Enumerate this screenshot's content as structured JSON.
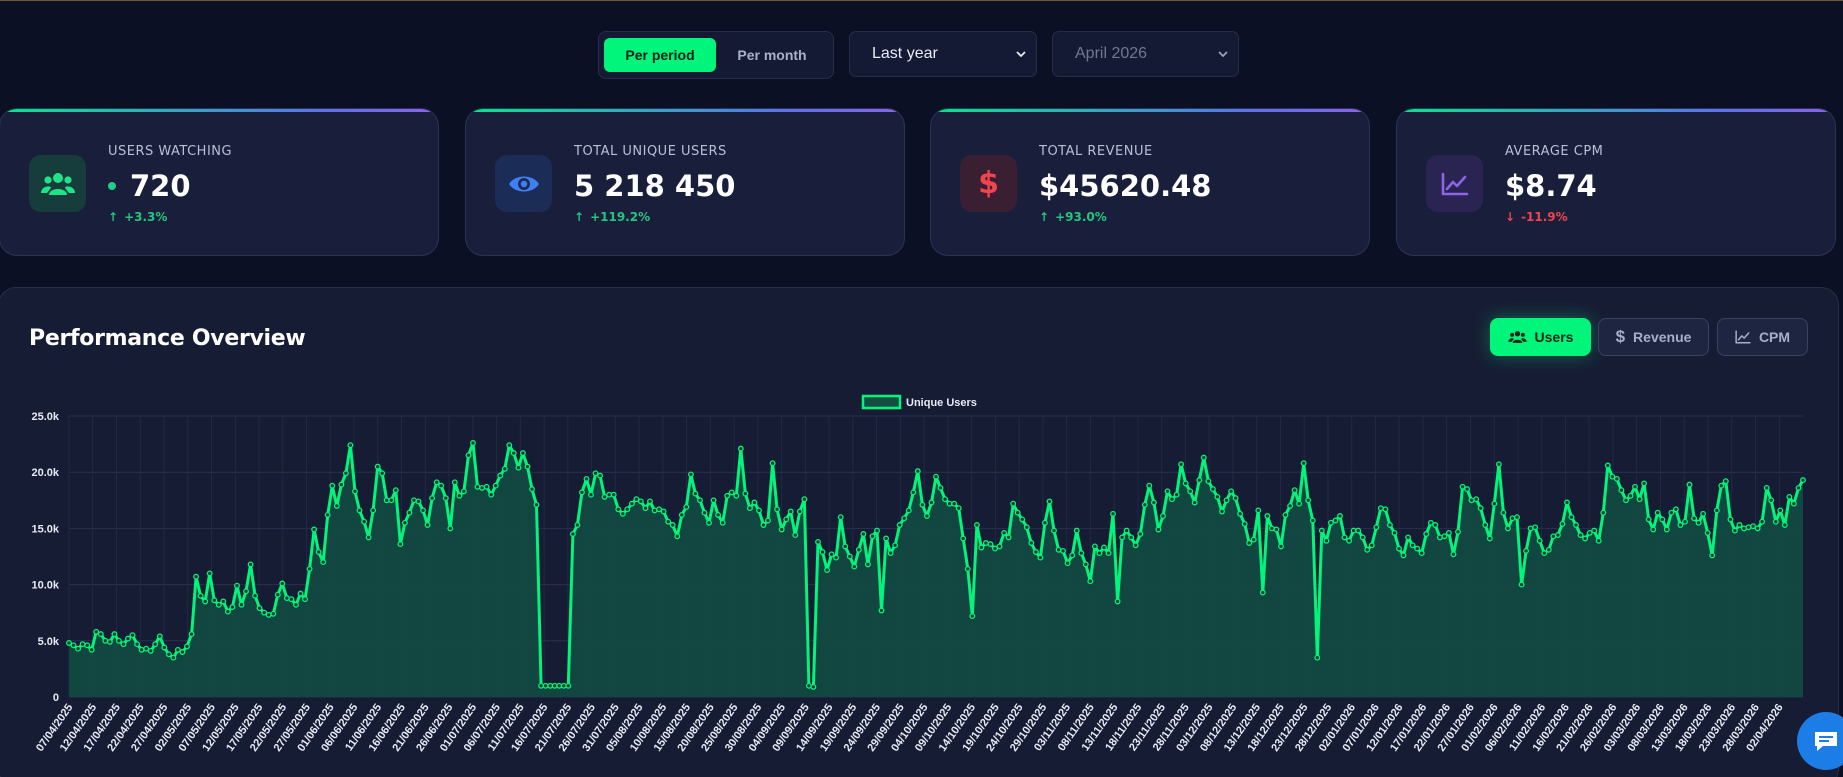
{
  "controls": {
    "period_toggle": {
      "active": "Per period",
      "inactive": "Per month"
    },
    "range_select": {
      "value": "Last year"
    },
    "month_select": {
      "value": "April 2026"
    }
  },
  "kpis": [
    {
      "label": "USERS WATCHING",
      "value": "720",
      "delta": "+3.3%",
      "trend": "up",
      "icon": "users-icon",
      "accent": "#1ee48a"
    },
    {
      "label": "TOTAL UNIQUE USERS",
      "value": "5 218 450",
      "delta": "+119.2%",
      "trend": "up",
      "icon": "eye-icon",
      "accent": "#3f7ff2"
    },
    {
      "label": "TOTAL REVENUE",
      "value": "$45620.48",
      "delta": "+93.0%",
      "trend": "up",
      "icon": "dollar-icon",
      "accent": "#f0454f"
    },
    {
      "label": "AVERAGE CPM",
      "value": "$8.74",
      "delta": "-11.9%",
      "trend": "down",
      "icon": "line-chart-icon",
      "accent": "#8d63e8"
    }
  ],
  "panel": {
    "title": "Performance Overview",
    "metric_buttons": [
      {
        "label": "Users",
        "icon": "users-icon",
        "active": true
      },
      {
        "label": "Revenue",
        "icon": "dollar-icon",
        "active": false
      },
      {
        "label": "CPM",
        "icon": "line-chart-icon",
        "active": false
      }
    ]
  },
  "chart_data": {
    "type": "area",
    "legend": "Unique Users",
    "line_color": "#00f57a",
    "y_ticks": [
      "0",
      "5.0k",
      "10.0k",
      "15.0k",
      "20.0k",
      "25.0k"
    ],
    "ylim": [
      0,
      25000
    ],
    "x_tick_labels": [
      "07/04/2025",
      "12/04/2025",
      "17/04/2025",
      "22/04/2025",
      "27/04/2025",
      "02/05/2025",
      "07/05/2025",
      "12/05/2025",
      "17/05/2025",
      "22/05/2025",
      "27/05/2025",
      "01/06/2025",
      "06/06/2025",
      "11/06/2025",
      "16/06/2025",
      "21/06/2025",
      "26/06/2025",
      "01/07/2025",
      "06/07/2025",
      "11/07/2025",
      "16/07/2025",
      "21/07/2025",
      "26/07/2025",
      "31/07/2025",
      "05/08/2025",
      "10/08/2025",
      "15/08/2025",
      "20/08/2025",
      "25/08/2025",
      "30/08/2025",
      "04/09/2025",
      "09/09/2025",
      "14/09/2025",
      "19/09/2025",
      "24/09/2025",
      "29/09/2025",
      "04/10/2025",
      "09/10/2025",
      "14/10/2025",
      "19/10/2025",
      "24/10/2025",
      "29/10/2025",
      "03/11/2025",
      "08/11/2025",
      "13/11/2025",
      "18/11/2025",
      "23/11/2025",
      "28/11/2025",
      "03/12/2025",
      "08/12/2025",
      "13/12/2025",
      "18/12/2025",
      "23/12/2025",
      "28/12/2025",
      "02/01/2026",
      "07/01/2026",
      "12/01/2026",
      "17/01/2026",
      "22/01/2026",
      "27/01/2026",
      "01/02/2026",
      "06/02/2026",
      "11/02/2026",
      "16/02/2026",
      "21/02/2026",
      "26/02/2026",
      "03/03/2026",
      "08/03/2026",
      "13/03/2026",
      "18/03/2026",
      "23/03/2026",
      "28/03/2026",
      "02/04/2026"
    ],
    "values": [
      4800,
      4600,
      4300,
      4700,
      4600,
      4200,
      5800,
      5600,
      5000,
      4900,
      5600,
      5000,
      4700,
      5200,
      5500,
      4700,
      4200,
      4300,
      4100,
      4700,
      5400,
      4400,
      3800,
      3500,
      4200,
      4000,
      4500,
      5600,
      10700,
      9000,
      8500,
      11000,
      8600,
      8200,
      8500,
      7600,
      8000,
      9900,
      8200,
      9400,
      11800,
      9000,
      7900,
      7500,
      7300,
      7400,
      9100,
      10100,
      8800,
      8700,
      8200,
      9200,
      8700,
      11400,
      14900,
      12900,
      12000,
      16200,
      18800,
      17000,
      18900,
      19900,
      22400,
      18300,
      16600,
      15600,
      14200,
      16600,
      20500,
      19900,
      17500,
      17500,
      18400,
      13600,
      15500,
      16400,
      17500,
      17400,
      16600,
      15300,
      17700,
      19100,
      18800,
      17700,
      15000,
      19100,
      17900,
      18300,
      21500,
      22600,
      18700,
      18600,
      18700,
      18000,
      18800,
      19700,
      20300,
      22400,
      21700,
      20400,
      21700,
      20500,
      18500,
      17100,
      1000,
      1000,
      1000,
      1000,
      1000,
      1000,
      1000,
      14500,
      15300,
      18200,
      19400,
      18000,
      19900,
      19700,
      17800,
      18000,
      18000,
      16700,
      16300,
      16700,
      17200,
      17600,
      17400,
      16800,
      17400,
      16600,
      16700,
      16500,
      15600,
      15300,
      14300,
      16200,
      16900,
      19800,
      18100,
      17500,
      16400,
      15500,
      17500,
      16200,
      15500,
      17900,
      18200,
      17900,
      22100,
      18100,
      16800,
      17300,
      16600,
      15300,
      15700,
      20800,
      16700,
      14900,
      15800,
      16500,
      14400,
      16500,
      17600,
      1000,
      900,
      13800,
      12900,
      11300,
      12700,
      12400,
      16000,
      13400,
      12500,
      11600,
      13100,
      14500,
      11800,
      14300,
      14800,
      7700,
      14100,
      12800,
      13500,
      15300,
      15900,
      16600,
      18200,
      20100,
      17100,
      16100,
      17300,
      19600,
      18600,
      17600,
      17200,
      17200,
      16800,
      14100,
      11400,
      7200,
      15300,
      13300,
      13700,
      13600,
      13200,
      13400,
      14600,
      14200,
      17200,
      16400,
      15800,
      15100,
      13700,
      12900,
      12400,
      15500,
      17400,
      14800,
      13100,
      13000,
      11900,
      12600,
      14800,
      12800,
      11800,
      10300,
      13400,
      12800,
      13300,
      12800,
      16300,
      8500,
      14200,
      14800,
      14200,
      13500,
      14500,
      17100,
      18800,
      17300,
      14900,
      16100,
      18300,
      17600,
      18000,
      20700,
      19000,
      18300,
      17300,
      19300,
      21300,
      19200,
      18500,
      17800,
      16500,
      17500,
      18300,
      17700,
      16300,
      15400,
      13700,
      14000,
      16600,
      9300,
      16100,
      15000,
      14900,
      13400,
      16200,
      17000,
      18400,
      17200,
      20800,
      17500,
      15700,
      3500,
      14800,
      13900,
      15500,
      15700,
      16100,
      14200,
      13900,
      14800,
      14800,
      14200,
      13100,
      13500,
      15100,
      16800,
      16700,
      15300,
      14600,
      13200,
      12600,
      14200,
      13500,
      13200,
      12800,
      14500,
      15500,
      15300,
      14200,
      14300,
      14600,
      12700,
      14700,
      18700,
      18500,
      17500,
      17600,
      16800,
      15300,
      14100,
      17200,
      20700,
      16400,
      15000,
      15900,
      16000,
      10000,
      13000,
      15000,
      15100,
      13900,
      12800,
      13100,
      14300,
      14400,
      15400,
      17300,
      16000,
      15300,
      14400,
      14100,
      14600,
      14800,
      13900,
      16400,
      20600,
      19600,
      19400,
      18400,
      17500,
      17900,
      18700,
      17600,
      19000,
      15800,
      14900,
      16400,
      15800,
      14900,
      16400,
      16700,
      15300,
      15600,
      18900,
      15900,
      15500,
      16300,
      14600,
      12600,
      16600,
      18800,
      19200,
      15800,
      14800,
      15300,
      15000,
      15100,
      15200,
      15000,
      15600,
      18600,
      17500,
      15600,
      16600,
      15300,
      17800,
      17200,
      18600,
      19300
    ]
  }
}
